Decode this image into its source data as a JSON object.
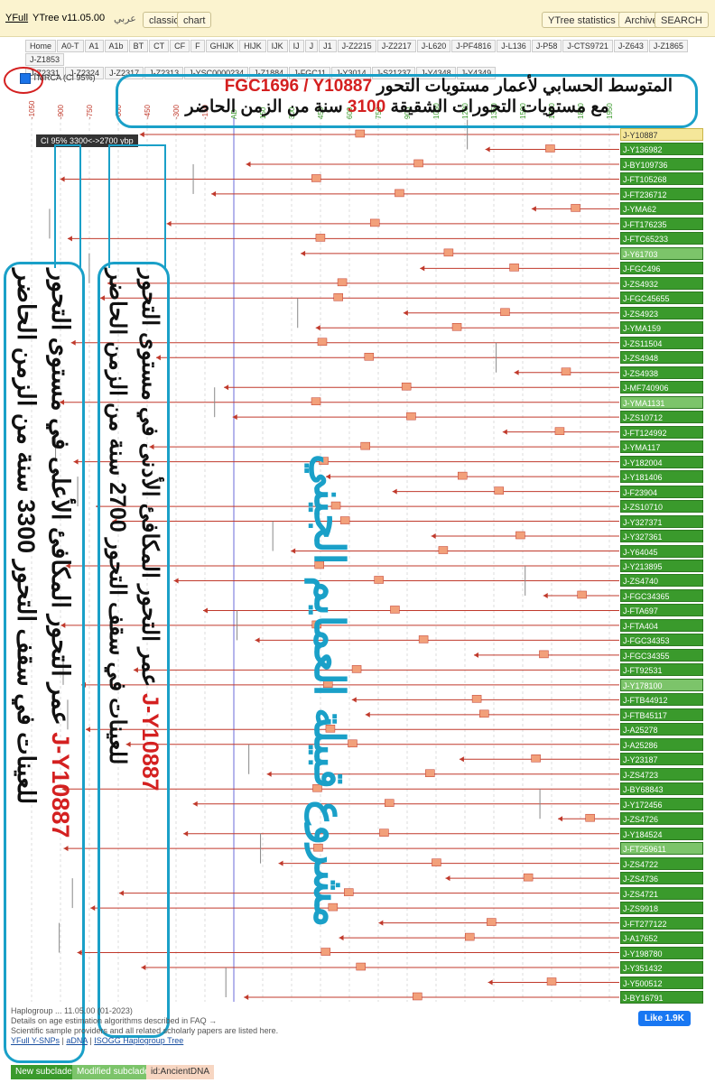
{
  "header": {
    "logo": "YFull",
    "version": "YTree v11.05.00",
    "language": "عربي",
    "view_buttons": [
      "classic",
      "chart"
    ],
    "right_buttons": [
      "YTree statistics",
      "Archive",
      "SEARCH"
    ]
  },
  "tabs": {
    "row1": [
      "Home",
      "A0-T",
      "A1",
      "A1b",
      "BT",
      "CT",
      "CF",
      "F",
      "GHIJK",
      "HIJK",
      "IJK",
      "IJ",
      "J",
      "J1",
      "J-Z2215",
      "J-Z2217",
      "J-L620",
      "J-PF4816",
      "J-L136",
      "J-P58",
      "J-CTS9721",
      "J-Z643",
      "J-Z1865",
      "J-Z1853"
    ],
    "row2": [
      "J-Z2331",
      "J-Z2324",
      "J-Z2317",
      "J-Z2313",
      "J-YSC0000234",
      "J-Z1884",
      "J-FGC11",
      "J-Y3014",
      "J-S21237",
      "J-Y4348",
      "J-Y4349"
    ]
  },
  "tmrca_label": "TMRCA (CI 95%)",
  "axis_ticks": [
    "-1050",
    "-900",
    "-750",
    "-600",
    "-450",
    "-300",
    "-150",
    "AD",
    "150",
    "300",
    "450",
    "600",
    "750",
    "900",
    "1050",
    "1200",
    "1350",
    "1500",
    "1650",
    "1800",
    "1950"
  ],
  "ci_tooltip": "CI 95% 3300<->2700 ybp",
  "samples": [
    "J-Y10887",
    "J-Y136982",
    "J-BY109736",
    "J-FT105268",
    "J-FT236712",
    "J-YMA62",
    "J-FT176235",
    "J-FTC65233",
    "J-Y61703",
    "J-FGC496",
    "J-ZS4932",
    "J-FGC45655",
    "J-ZS4923",
    "J-YMA159",
    "J-ZS11504",
    "J-ZS4948",
    "J-ZS4938",
    "J-MF740906",
    "J-YMA1131",
    "J-ZS10712",
    "J-FT124992",
    "J-YMA117",
    "J-Y182004",
    "J-Y181406",
    "J-F23904",
    "J-ZS10710",
    "J-Y327371",
    "J-Y327361",
    "J-Y64045",
    "J-Y213895",
    "J-ZS4740",
    "J-FGC34365",
    "J-FTA697",
    "J-FTA404",
    "J-FGC34353",
    "J-FGC34355",
    "J-FT92531",
    "J-Y178100",
    "J-FTB44912",
    "J-FTB45117",
    "J-A25278",
    "J-A25286",
    "J-Y23187",
    "J-ZS4723",
    "J-BY68843",
    "J-Y172456",
    "J-ZS4726",
    "J-Y184524",
    "J-FT259611",
    "J-ZS4722",
    "J-ZS4736",
    "J-ZS4721",
    "J-ZS9918",
    "J-FT277122",
    "J-A17652",
    "J-Y198780",
    "J-Y351432",
    "J-Y500512",
    "J-BY16791"
  ],
  "annotation_top": {
    "line1_text": "المتوسط الحسابي لأعمار مستويات التحور",
    "line1_red": "FGC1696 / Y10887",
    "line2_start": "مع مستويات التحورات الشقيقة",
    "line2_red": "3100",
    "line2_end": "سنة من الزمن الحاضر"
  },
  "annotation_left_upper": {
    "line1": "عمر التحور المكافئ الأعلى في مستوى التحور",
    "red": "J-Y10887",
    "line2": "للعينات في سقف التحور 3300 سنة من الزمن الحاضر"
  },
  "annotation_left_lower": {
    "line1": "عمر التحور المكافئ الأدنى في مستوى التحور",
    "red": "J-Y10887",
    "line2": "للعينات في سقف التحور 2700 سنة من الزمن الحاضر"
  },
  "watermark": "مشروع قبيلة العمايم الجيني",
  "footer": {
    "haplogroup_line": "Haplogroup ... 11.05.00 (01-2023)",
    "faq_line": "Details on age estimation algorithms described in FAQ →",
    "providers_line": "Scientific sample providers and all related scholarly papers are listed here.",
    "links": [
      "YFull Y-SNPs",
      "aDNA",
      "ISOGG Haplogroup Tree"
    ],
    "like": "Like 1.9K"
  },
  "legend": [
    "New subclade",
    "Modified subclade",
    "id:AncientDNA"
  ]
}
